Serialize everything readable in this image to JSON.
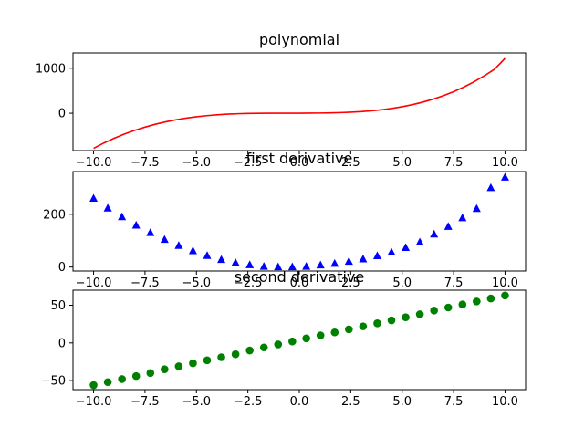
{
  "chart_data": [
    {
      "type": "line",
      "title": "polynomial",
      "xlabel": "",
      "ylabel": "",
      "xlim": [
        -11,
        11
      ],
      "ylim": [
        -830,
        1340
      ],
      "xticks": [
        -10,
        -7.5,
        -5,
        -2.5,
        0,
        2.5,
        5,
        7.5,
        10
      ],
      "xtick_labels": [
        "−10.0",
        "−7.5",
        "−5.0",
        "−2.5",
        "0.0",
        "2.5",
        "5.0",
        "7.5",
        "10.0"
      ],
      "yticks": [
        0,
        1000
      ],
      "ytick_labels": [
        "0",
        "1000"
      ],
      "color": "#ff0000",
      "marker": "none",
      "x": [
        -10,
        -9.5,
        -9,
        -8.5,
        -8,
        -7.5,
        -7,
        -6.5,
        -6,
        -5.5,
        -5,
        -4.5,
        -4,
        -3.5,
        -3,
        -2.5,
        -2,
        -1.5,
        -1,
        -0.5,
        0,
        0.5,
        1,
        1.5,
        2,
        2.5,
        3,
        3.5,
        4,
        4.5,
        5,
        5.5,
        6,
        6.5,
        7,
        7.5,
        8,
        8.5,
        9,
        9.5,
        10
      ],
      "y": [
        -780,
        -662,
        -557,
        -463,
        -381,
        -309,
        -246,
        -192,
        -147,
        -109,
        -78,
        -54,
        -35,
        -21,
        -11,
        -5,
        -1.5,
        0,
        0.3,
        0.5,
        1,
        2,
        4,
        8,
        14,
        23,
        36,
        54,
        77,
        107,
        145,
        191,
        246,
        312,
        390,
        479,
        582,
        700,
        833,
        981,
        1220
      ]
    },
    {
      "type": "scatter",
      "title": "first derivative",
      "xlabel": "",
      "ylabel": "",
      "xlim": [
        -11,
        11
      ],
      "ylim": [
        -15,
        362
      ],
      "xticks": [
        -10,
        -7.5,
        -5,
        -2.5,
        0,
        2.5,
        5,
        7.5,
        10
      ],
      "xtick_labels": [
        "−10.0",
        "−7.5",
        "−5.0",
        "−2.5",
        "0.0",
        "2.5",
        "5.0",
        "7.5",
        "10.0"
      ],
      "yticks": [
        0,
        200
      ],
      "ytick_labels": [
        "0",
        "200"
      ],
      "color": "#0000ff",
      "marker": "triangle",
      "x": [
        -10,
        -9.31,
        -8.62,
        -7.93,
        -7.24,
        -6.55,
        -5.86,
        -5.17,
        -4.48,
        -3.79,
        -3.1,
        -2.41,
        -1.72,
        -1.03,
        -0.34,
        0.34,
        1.03,
        1.72,
        2.41,
        3.1,
        3.79,
        4.48,
        5.17,
        5.86,
        6.55,
        7.24,
        7.93,
        8.62,
        9.31,
        10
      ],
      "y": [
        260,
        223,
        190,
        158,
        130,
        104,
        81,
        61,
        43,
        28,
        16,
        8,
        2,
        0,
        0,
        2,
        7,
        13,
        21,
        30,
        42,
        56,
        73,
        94,
        124,
        153,
        186,
        221,
        300,
        340
      ]
    },
    {
      "type": "scatter",
      "title": "second derivative",
      "xlabel": "",
      "ylabel": "",
      "xlim": [
        -11,
        11
      ],
      "ylim": [
        -62,
        70
      ],
      "xticks": [
        -10,
        -7.5,
        -5,
        -2.5,
        0,
        2.5,
        5,
        7.5,
        10
      ],
      "xtick_labels": [
        "−10.0",
        "−7.5",
        "−5.0",
        "−2.5",
        "0.0",
        "2.5",
        "5.0",
        "7.5",
        "10.0"
      ],
      "yticks": [
        -50,
        0,
        50
      ],
      "ytick_labels": [
        "−50",
        "0",
        "50"
      ],
      "color": "#008000",
      "marker": "circle",
      "x": [
        -10,
        -9.31,
        -8.62,
        -7.93,
        -7.24,
        -6.55,
        -5.86,
        -5.17,
        -4.48,
        -3.79,
        -3.1,
        -2.41,
        -1.72,
        -1.03,
        -0.34,
        0.34,
        1.03,
        1.72,
        2.41,
        3.1,
        3.79,
        4.48,
        5.17,
        5.86,
        6.55,
        7.24,
        7.93,
        8.62,
        9.31,
        10
      ],
      "y": [
        -56,
        -52,
        -48,
        -44,
        -40,
        -35,
        -31,
        -27,
        -23,
        -19,
        -15,
        -10,
        -6,
        -2,
        2,
        6,
        10,
        14,
        18,
        22,
        26,
        30,
        34,
        38,
        43,
        47,
        51,
        55,
        59,
        63
      ]
    }
  ]
}
